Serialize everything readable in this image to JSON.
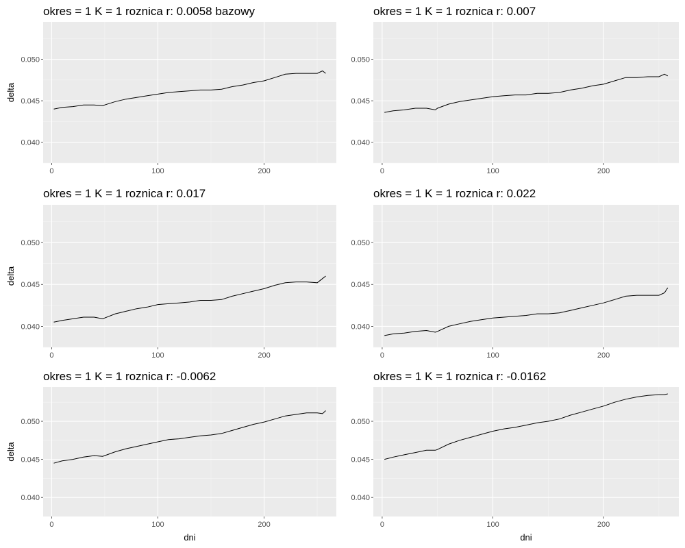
{
  "chart_data": [
    {
      "type": "line",
      "title": "okres = 1 K = 1 roznica r: 0.0058 bazowy",
      "xlabel": "",
      "ylabel": "delta",
      "xlim": [
        -8,
        268
      ],
      "ylim": [
        0.0375,
        0.0545
      ],
      "xticks": [
        0,
        100,
        200
      ],
      "xtick_labels": [
        "0",
        "100",
        "200"
      ],
      "yticks": [
        0.04,
        0.045,
        0.05
      ],
      "ytick_labels": [
        "0.040",
        "0.045",
        "0.050"
      ],
      "grid": true,
      "series": [
        {
          "x": [
            2,
            10,
            20,
            30,
            40,
            48,
            50,
            60,
            70,
            80,
            90,
            100,
            110,
            120,
            130,
            140,
            150,
            160,
            170,
            180,
            190,
            200,
            210,
            220,
            230,
            240,
            250,
            255,
            258
          ],
          "y": [
            0.044,
            0.0442,
            0.0443,
            0.0445,
            0.0445,
            0.0444,
            0.0445,
            0.0449,
            0.0452,
            0.0454,
            0.0456,
            0.0458,
            0.046,
            0.0461,
            0.0462,
            0.0463,
            0.0463,
            0.0464,
            0.0467,
            0.0469,
            0.0472,
            0.0474,
            0.0478,
            0.0482,
            0.0483,
            0.0483,
            0.0483,
            0.0486,
            0.0483
          ]
        }
      ]
    },
    {
      "type": "line",
      "title": "okres = 1 K = 1 roznica r: 0.007",
      "xlabel": "",
      "ylabel": "",
      "xlim": [
        -8,
        268
      ],
      "ylim": [
        0.0375,
        0.0545
      ],
      "xticks": [
        0,
        100,
        200
      ],
      "xtick_labels": [
        "0",
        "100",
        "200"
      ],
      "yticks": [
        0.04,
        0.045,
        0.05
      ],
      "ytick_labels": [
        "0.040",
        "0.045",
        "0.050"
      ],
      "grid": true,
      "series": [
        {
          "x": [
            2,
            10,
            20,
            30,
            40,
            48,
            50,
            60,
            70,
            80,
            90,
            100,
            110,
            120,
            130,
            140,
            150,
            160,
            170,
            180,
            190,
            200,
            210,
            220,
            230,
            240,
            250,
            255,
            258
          ],
          "y": [
            0.0436,
            0.0438,
            0.0439,
            0.0441,
            0.0441,
            0.0439,
            0.0441,
            0.0446,
            0.0449,
            0.0451,
            0.0453,
            0.0455,
            0.0456,
            0.0457,
            0.0457,
            0.0459,
            0.0459,
            0.046,
            0.0463,
            0.0465,
            0.0468,
            0.047,
            0.0474,
            0.0478,
            0.0478,
            0.0479,
            0.0479,
            0.0482,
            0.048
          ]
        }
      ]
    },
    {
      "type": "line",
      "title": "okres = 1 K = 1 roznica r: 0.017",
      "xlabel": "",
      "ylabel": "delta",
      "xlim": [
        -8,
        268
      ],
      "ylim": [
        0.0375,
        0.0545
      ],
      "xticks": [
        0,
        100,
        200
      ],
      "xtick_labels": [
        "0",
        "100",
        "200"
      ],
      "yticks": [
        0.04,
        0.045,
        0.05
      ],
      "ytick_labels": [
        "0.040",
        "0.045",
        "0.050"
      ],
      "grid": true,
      "series": [
        {
          "x": [
            2,
            10,
            20,
            30,
            40,
            48,
            50,
            60,
            70,
            80,
            90,
            100,
            110,
            120,
            130,
            140,
            150,
            160,
            170,
            180,
            190,
            200,
            210,
            220,
            230,
            240,
            250,
            255,
            258
          ],
          "y": [
            0.0405,
            0.0407,
            0.0409,
            0.0411,
            0.0411,
            0.0409,
            0.041,
            0.0415,
            0.0418,
            0.0421,
            0.0423,
            0.0426,
            0.0427,
            0.0428,
            0.0429,
            0.0431,
            0.0431,
            0.0432,
            0.0436,
            0.0439,
            0.0442,
            0.0445,
            0.0449,
            0.0452,
            0.0453,
            0.0453,
            0.0452,
            0.0457,
            0.046
          ]
        }
      ]
    },
    {
      "type": "line",
      "title": "okres = 1 K = 1 roznica r: 0.022",
      "xlabel": "",
      "ylabel": "",
      "xlim": [
        -8,
        268
      ],
      "ylim": [
        0.0375,
        0.0545
      ],
      "xticks": [
        0,
        100,
        200
      ],
      "xtick_labels": [
        "0",
        "100",
        "200"
      ],
      "yticks": [
        0.04,
        0.045,
        0.05
      ],
      "ytick_labels": [
        "0.040",
        "0.045",
        "0.050"
      ],
      "grid": true,
      "series": [
        {
          "x": [
            2,
            10,
            20,
            30,
            40,
            48,
            50,
            60,
            70,
            80,
            90,
            100,
            110,
            120,
            130,
            140,
            150,
            160,
            170,
            180,
            190,
            200,
            210,
            220,
            230,
            240,
            250,
            255,
            258
          ],
          "y": [
            0.0389,
            0.0391,
            0.0392,
            0.0394,
            0.0395,
            0.0393,
            0.0394,
            0.04,
            0.0403,
            0.0406,
            0.0408,
            0.041,
            0.0411,
            0.0412,
            0.0413,
            0.0415,
            0.0415,
            0.0416,
            0.0419,
            0.0422,
            0.0425,
            0.0428,
            0.0432,
            0.0436,
            0.0437,
            0.0437,
            0.0437,
            0.044,
            0.0446
          ]
        }
      ]
    },
    {
      "type": "line",
      "title": "okres = 1 K = 1 roznica r: -0.0062",
      "xlabel": "dni",
      "ylabel": "delta",
      "xlim": [
        -8,
        268
      ],
      "ylim": [
        0.0375,
        0.0545
      ],
      "xticks": [
        0,
        100,
        200
      ],
      "xtick_labels": [
        "0",
        "100",
        "200"
      ],
      "yticks": [
        0.04,
        0.045,
        0.05
      ],
      "ytick_labels": [
        "0.040",
        "0.045",
        "0.050"
      ],
      "grid": true,
      "series": [
        {
          "x": [
            2,
            10,
            20,
            30,
            40,
            48,
            50,
            60,
            70,
            80,
            90,
            100,
            110,
            120,
            130,
            140,
            150,
            160,
            170,
            180,
            190,
            200,
            210,
            220,
            230,
            240,
            250,
            255,
            258
          ],
          "y": [
            0.0445,
            0.0448,
            0.045,
            0.0453,
            0.0455,
            0.0454,
            0.0455,
            0.046,
            0.0464,
            0.0467,
            0.047,
            0.0473,
            0.0476,
            0.0477,
            0.0479,
            0.0481,
            0.0482,
            0.0484,
            0.0488,
            0.0492,
            0.0496,
            0.0499,
            0.0503,
            0.0507,
            0.0509,
            0.0511,
            0.0511,
            0.051,
            0.0514
          ]
        }
      ]
    },
    {
      "type": "line",
      "title": "okres = 1 K = 1 roznica r: -0.0162",
      "xlabel": "dni",
      "ylabel": "",
      "xlim": [
        -8,
        268
      ],
      "ylim": [
        0.0375,
        0.0545
      ],
      "xticks": [
        0,
        100,
        200
      ],
      "xtick_labels": [
        "0",
        "100",
        "200"
      ],
      "yticks": [
        0.04,
        0.045,
        0.05
      ],
      "ytick_labels": [
        "0.040",
        "0.045",
        "0.050"
      ],
      "grid": true,
      "series": [
        {
          "x": [
            2,
            10,
            20,
            30,
            40,
            48,
            50,
            60,
            70,
            80,
            90,
            100,
            110,
            120,
            130,
            140,
            150,
            160,
            170,
            180,
            190,
            200,
            210,
            220,
            230,
            240,
            250,
            255,
            258
          ],
          "y": [
            0.045,
            0.0453,
            0.0456,
            0.0459,
            0.0462,
            0.0462,
            0.0463,
            0.047,
            0.0475,
            0.0479,
            0.0483,
            0.0487,
            0.049,
            0.0492,
            0.0495,
            0.0498,
            0.05,
            0.0503,
            0.0508,
            0.0512,
            0.0516,
            0.052,
            0.0525,
            0.0529,
            0.0532,
            0.0534,
            0.0535,
            0.0535,
            0.0536
          ]
        }
      ]
    }
  ]
}
